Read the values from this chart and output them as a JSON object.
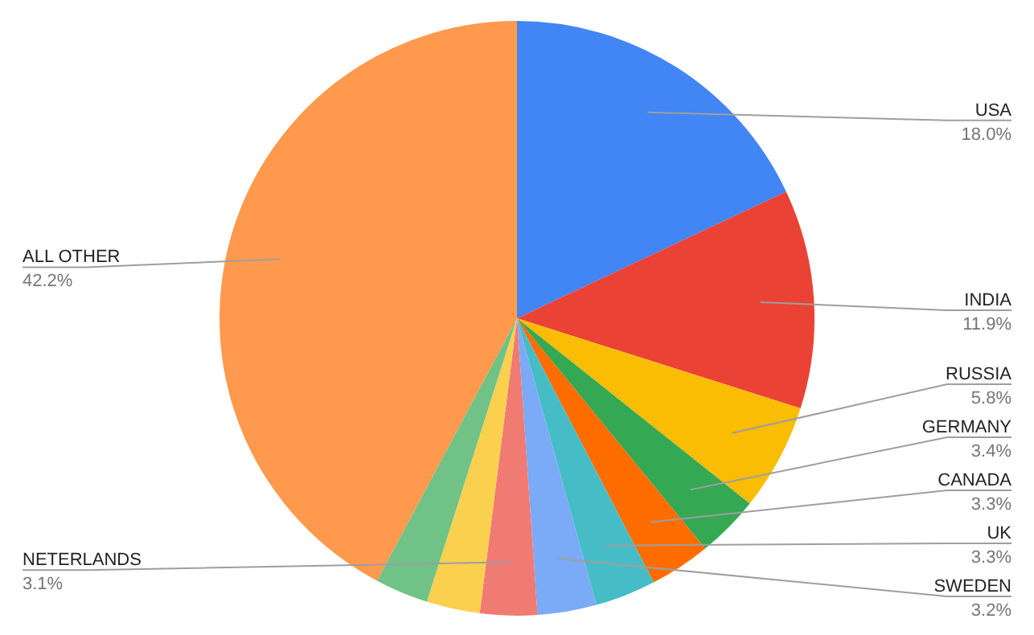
{
  "chart_data": {
    "type": "pie",
    "categories": [
      "USA",
      "INDIA",
      "RUSSIA",
      "GERMANY",
      "CANADA",
      "UK",
      "SWEDEN",
      "NETERLANDS",
      null,
      null,
      "ALL OTHER"
    ],
    "values": [
      18.0,
      11.9,
      5.8,
      3.4,
      3.3,
      3.3,
      3.2,
      3.1,
      2.9,
      2.9,
      42.2
    ],
    "value_labels": [
      "18.0%",
      "11.9%",
      "5.8%",
      "3.4%",
      "3.3%",
      "3.3%",
      "3.2%",
      "3.1%",
      null,
      null,
      "42.2%"
    ],
    "colors": [
      "#4285f4",
      "#ea4335",
      "#fbbc04",
      "#34a853",
      "#ff6d01",
      "#46bdc6",
      "#7baaf7",
      "#f07b72",
      "#fcd04f",
      "#71c287",
      "#ff994d"
    ],
    "legend": false
  }
}
